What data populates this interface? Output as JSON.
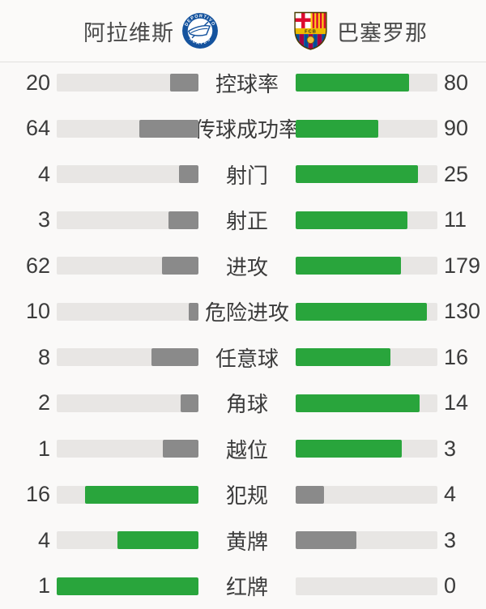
{
  "header": {
    "home_team": {
      "name": "阿拉维斯",
      "crest": "alaves-crest"
    },
    "away_team": {
      "name": "巴塞罗那",
      "crest": "barcelona-crest"
    }
  },
  "colors": {
    "winner_fill": "#29a53c",
    "loser_fill": "#8a8a8a",
    "bar_track": "#e8e6e4",
    "background": "#faf9f8",
    "text": "#3b3b3b",
    "divider": "#e2e0de",
    "alaves_blue": "#15539e",
    "barca_blue": "#004d98",
    "barca_red": "#a50044",
    "barca_gold": "#edbb00",
    "cross_red": "#dd0b2f",
    "senyera_yellow": "#fcd116"
  },
  "chart_data": {
    "type": "bar",
    "orientation": "horizontal-paired",
    "title": "",
    "legend_position": "header",
    "categories": [
      "控球率",
      "传球成功率",
      "射门",
      "射正",
      "进攻",
      "危险进攻",
      "任意球",
      "角球",
      "越位",
      "犯规",
      "黄牌",
      "红牌"
    ],
    "series": [
      {
        "name": "阿拉维斯",
        "side": "home",
        "values": [
          20,
          64,
          4,
          3,
          62,
          10,
          8,
          2,
          1,
          16,
          4,
          1
        ]
      },
      {
        "name": "巴塞罗那",
        "side": "away",
        "values": [
          80,
          90,
          25,
          11,
          179,
          130,
          16,
          14,
          3,
          4,
          3,
          0
        ]
      }
    ],
    "bar_rule": "fill fraction = value / (home + away); the larger value of each pair is green, the smaller is gray; home bars grow right-to-left toward center, away bars grow left-to-right"
  }
}
